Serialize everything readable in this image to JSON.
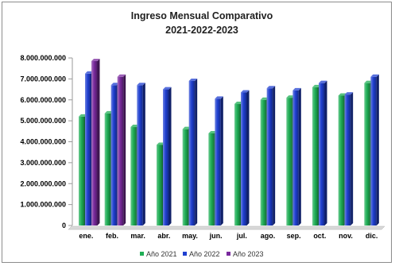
{
  "chart_data": {
    "type": "bar",
    "title": "Ingreso Mensual Comparativo",
    "subtitle": "2021-2022-2023",
    "xlabel": "",
    "ylabel": "",
    "categories": [
      "ene.",
      "feb.",
      "mar.",
      "abr.",
      "may.",
      "jun.",
      "jul.",
      "ago.",
      "sep.",
      "oct.",
      "nov.",
      "dic."
    ],
    "ylim": [
      0,
      8000000000
    ],
    "yticks": [
      0,
      1000000000,
      2000000000,
      3000000000,
      4000000000,
      5000000000,
      6000000000,
      7000000000,
      8000000000
    ],
    "ytick_labels": [
      "0",
      "1.000.000.000",
      "2.000.000.000",
      "3.000.000.000",
      "4.000.000.000",
      "5.000.000.000",
      "6.000.000.000",
      "7.000.000.000",
      "8.000.000.000"
    ],
    "grid": false,
    "legend_position": "bottom",
    "series": [
      {
        "name": "Año 2021",
        "color": "#1fae55",
        "values": [
          5200000000,
          5350000000,
          4700000000,
          3850000000,
          4600000000,
          4400000000,
          5800000000,
          6000000000,
          6100000000,
          6600000000,
          6200000000,
          6800000000
        ]
      },
      {
        "name": "Año 2022",
        "color": "#1f3fd0",
        "values": [
          7250000000,
          6700000000,
          6700000000,
          6500000000,
          6900000000,
          6050000000,
          6350000000,
          6550000000,
          6450000000,
          6800000000,
          6250000000,
          7100000000
        ]
      },
      {
        "name": "Año 2023",
        "color": "#7a2a9e",
        "values": [
          7850000000,
          7100000000,
          null,
          null,
          null,
          null,
          null,
          null,
          null,
          null,
          null,
          null
        ]
      }
    ]
  }
}
